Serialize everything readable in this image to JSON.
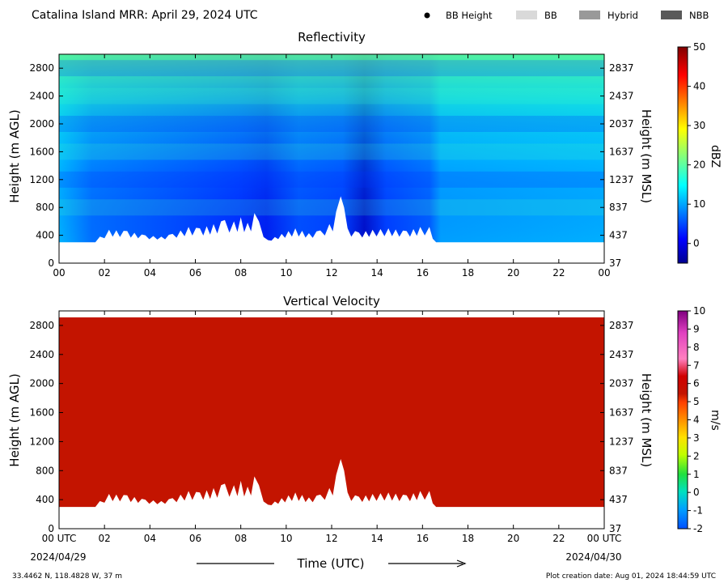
{
  "header": {
    "title": "Catalina Island MRR:  April 29, 2024 UTC",
    "legend": [
      {
        "label": "BB Height",
        "kind": "dot",
        "color": "#000000"
      },
      {
        "label": "BB",
        "kind": "swatch",
        "color": "#d9d9d9"
      },
      {
        "label": "Hybrid",
        "kind": "swatch",
        "color": "#999999"
      },
      {
        "label": "NBB",
        "kind": "swatch",
        "color": "#595959"
      }
    ]
  },
  "footer": {
    "location": "33.4462 N, 118.4828 W, 37 m",
    "creation": "Plot creation date: Aug 01, 2024 18:44:59 UTC",
    "xlabel": "Time (UTC)",
    "start_date": "2024/04/29",
    "end_date": "2024/04/30"
  },
  "chart_data": [
    {
      "type": "heatmap",
      "title": "Reflectivity",
      "xlabel": "Time (UTC)",
      "ylabel": "Height (m AGL)",
      "ylabel_right": "Height (m MSL)",
      "xlim": [
        0,
        24
      ],
      "ylim": [
        0,
        3000
      ],
      "x_ticks": [
        "00",
        "02",
        "04",
        "06",
        "08",
        "10",
        "12",
        "14",
        "16",
        "18",
        "20",
        "22",
        "00"
      ],
      "y_ticks": [
        0,
        400,
        800,
        1200,
        1600,
        2000,
        2400,
        2800
      ],
      "y_ticks_right": [
        37,
        437,
        837,
        1237,
        1637,
        2037,
        2437,
        2837
      ],
      "colorbar": {
        "label": "dBZ",
        "min": -5,
        "max": 50,
        "ticks": [
          0,
          10,
          20,
          30,
          40,
          50
        ],
        "colormap": "jet"
      },
      "data_bottom_m": 300,
      "data_top_m": 3000,
      "low_echo_top_m": [
        [
          0.0,
          300
        ],
        [
          1.6,
          300
        ],
        [
          1.8,
          380
        ],
        [
          2.2,
          480
        ],
        [
          3.0,
          460
        ],
        [
          3.8,
          400
        ],
        [
          4.5,
          380
        ],
        [
          5.0,
          420
        ],
        [
          5.7,
          520
        ],
        [
          6.2,
          500
        ],
        [
          6.8,
          560
        ],
        [
          7.3,
          620
        ],
        [
          7.7,
          600
        ],
        [
          8.0,
          660
        ],
        [
          8.3,
          580
        ],
        [
          8.6,
          720
        ],
        [
          8.8,
          600
        ],
        [
          9.2,
          330
        ],
        [
          9.8,
          420
        ],
        [
          10.4,
          500
        ],
        [
          11.0,
          430
        ],
        [
          11.5,
          470
        ],
        [
          11.9,
          560
        ],
        [
          12.2,
          740
        ],
        [
          12.4,
          960
        ],
        [
          12.55,
          800
        ],
        [
          12.7,
          500
        ],
        [
          13.2,
          440
        ],
        [
          13.8,
          480
        ],
        [
          14.5,
          500
        ],
        [
          15.3,
          460
        ],
        [
          15.9,
          520
        ],
        [
          16.3,
          520
        ],
        [
          16.6,
          300
        ],
        [
          24.0,
          300
        ]
      ]
    },
    {
      "type": "heatmap",
      "title": "Vertical Velocity",
      "xlabel": "Time (UTC)",
      "ylabel": "Height (m AGL)",
      "ylabel_right": "Height (m MSL)",
      "xlim": [
        0,
        24
      ],
      "ylim": [
        0,
        3000
      ],
      "x_ticks": [
        "00 UTC",
        "02",
        "04",
        "06",
        "08",
        "10",
        "12",
        "14",
        "16",
        "18",
        "20",
        "22",
        "00 UTC"
      ],
      "y_ticks": [
        0,
        400,
        800,
        1200,
        1600,
        2000,
        2400,
        2800
      ],
      "y_ticks_right": [
        37,
        437,
        837,
        1237,
        1637,
        2037,
        2437,
        2837
      ],
      "colorbar": {
        "label": "m/s",
        "min": -2,
        "max": 10,
        "ticks": [
          -2,
          -1,
          0,
          1,
          2,
          3,
          4,
          5,
          6,
          7,
          8,
          9,
          10
        ]
      },
      "fill_color": "#c31400",
      "typical_value": 6,
      "data_bottom_m": 300,
      "data_top_m": 3000
    }
  ]
}
